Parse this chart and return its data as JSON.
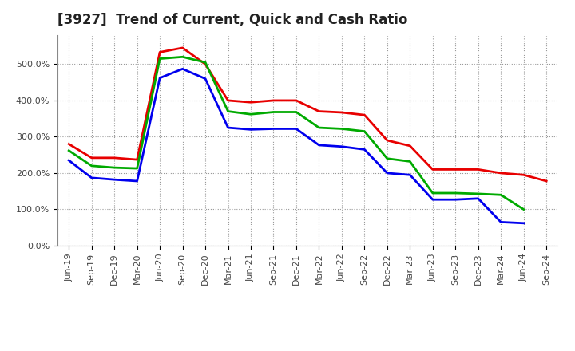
{
  "title": "[3927]  Trend of Current, Quick and Cash Ratio",
  "x_labels": [
    "Jun-19",
    "Sep-19",
    "Dec-19",
    "Mar-20",
    "Jun-20",
    "Sep-20",
    "Dec-20",
    "Mar-21",
    "Jun-21",
    "Sep-21",
    "Dec-21",
    "Mar-22",
    "Jun-22",
    "Sep-22",
    "Dec-22",
    "Mar-23",
    "Jun-23",
    "Sep-23",
    "Dec-23",
    "Mar-24",
    "Jun-24",
    "Sep-24"
  ],
  "current_ratio": [
    280,
    242,
    242,
    237,
    533,
    545,
    500,
    400,
    395,
    400,
    400,
    370,
    367,
    360,
    290,
    275,
    210,
    210,
    210,
    200,
    195,
    178
  ],
  "quick_ratio": [
    262,
    220,
    215,
    213,
    515,
    520,
    505,
    370,
    362,
    368,
    368,
    325,
    322,
    315,
    240,
    232,
    145,
    145,
    143,
    140,
    100,
    null
  ],
  "cash_ratio": [
    235,
    187,
    182,
    178,
    462,
    487,
    460,
    325,
    320,
    322,
    322,
    277,
    273,
    265,
    200,
    195,
    127,
    127,
    130,
    65,
    62,
    null
  ],
  "current_color": "#e80000",
  "quick_color": "#00aa00",
  "cash_color": "#0000ee",
  "ylim": [
    0,
    580
  ],
  "yticks": [
    0,
    100,
    200,
    300,
    400,
    500
  ],
  "background_color": "#ffffff",
  "plot_bg_color": "#ffffff",
  "grid_color": "#999999",
  "linewidth": 2.0,
  "title_fontsize": 12,
  "tick_fontsize": 8
}
